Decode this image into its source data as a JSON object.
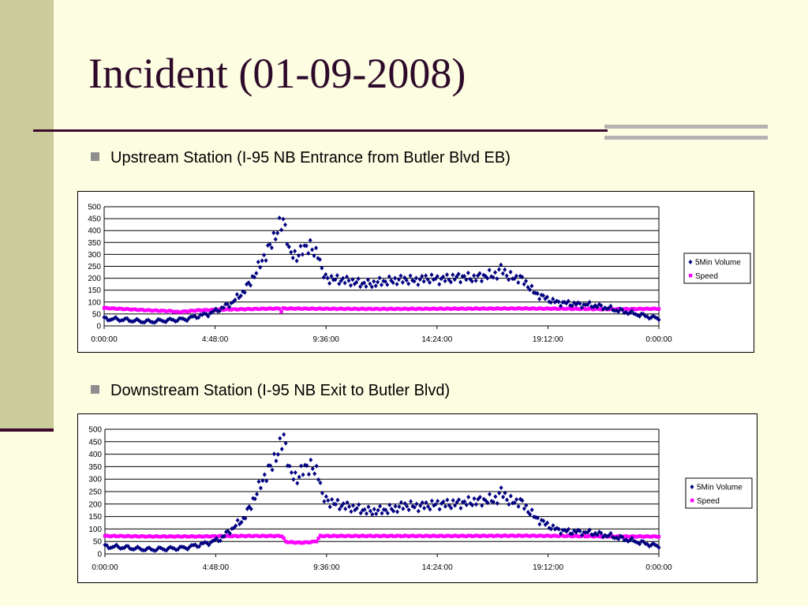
{
  "slide": {
    "title": "Incident (01-09-2008)",
    "bullets": [
      "Upstream Station (I-95 NB Entrance from Butler Blvd EB)",
      "Downstream Station (I-95 NB Exit to Butler Blvd)"
    ]
  },
  "colors": {
    "background": "#fdfde2",
    "sidebar": "#cccc9a",
    "rule": "#3d0a2d",
    "volume": "#000080",
    "speed": "#ff00ff"
  },
  "chart_data": [
    {
      "type": "scatter",
      "title": "",
      "xlabel": "",
      "ylabel": "",
      "ylim": [
        0,
        500
      ],
      "yticks": [
        "500",
        "450",
        "400",
        "350",
        "300",
        "250",
        "200",
        "150",
        "100",
        "50",
        "0"
      ],
      "xticks": [
        "0:00:00",
        "4:48:00",
        "9:36:00",
        "14:24:00",
        "19:12:00",
        "0:00:00"
      ],
      "xlim_hours": [
        0,
        24
      ],
      "grid": true,
      "legend_position": "right",
      "series": [
        {
          "name": "5Min Volume",
          "marker": "diamond",
          "color": "#000080",
          "points": [
            [
              0,
              30
            ],
            [
              0.5,
              28
            ],
            [
              1,
              25
            ],
            [
              1.5,
              20
            ],
            [
              2,
              18
            ],
            [
              2.5,
              22
            ],
            [
              3,
              25
            ],
            [
              3.5,
              28
            ],
            [
              4,
              40
            ],
            [
              4.5,
              50
            ],
            [
              5,
              70
            ],
            [
              5.5,
              95
            ],
            [
              6,
              140
            ],
            [
              6.3,
              180
            ],
            [
              6.6,
              230
            ],
            [
              6.8,
              270
            ],
            [
              7,
              300
            ],
            [
              7.2,
              340
            ],
            [
              7.4,
              380
            ],
            [
              7.6,
              420
            ],
            [
              7.75,
              440
            ],
            [
              7.9,
              390
            ],
            [
              8.0,
              310
            ],
            [
              8.3,
              290
            ],
            [
              8.6,
              320
            ],
            [
              8.9,
              340
            ],
            [
              9.1,
              300
            ],
            [
              9.3,
              310
            ],
            [
              9.4,
              230
            ],
            [
              9.6,
              200
            ],
            [
              10,
              195
            ],
            [
              10.5,
              190
            ],
            [
              11,
              180
            ],
            [
              11.5,
              175
            ],
            [
              12,
              185
            ],
            [
              12.5,
              190
            ],
            [
              13,
              195
            ],
            [
              13.5,
              190
            ],
            [
              14,
              200
            ],
            [
              14.5,
              195
            ],
            [
              15,
              200
            ],
            [
              15.5,
              205
            ],
            [
              16,
              200
            ],
            [
              16.5,
              210
            ],
            [
              17,
              215
            ],
            [
              17.2,
              245
            ],
            [
              17.5,
              205
            ],
            [
              18,
              200
            ],
            [
              18.3,
              175
            ],
            [
              18.6,
              140
            ],
            [
              19,
              120
            ],
            [
              19.5,
              100
            ],
            [
              20,
              95
            ],
            [
              20.5,
              90
            ],
            [
              21,
              88
            ],
            [
              21.5,
              80
            ],
            [
              22,
              70
            ],
            [
              22.5,
              60
            ],
            [
              23,
              50
            ],
            [
              23.5,
              40
            ],
            [
              24,
              30
            ]
          ]
        },
        {
          "name": "Speed",
          "marker": "square",
          "color": "#ff00ff",
          "points": [
            [
              0,
              75
            ],
            [
              1,
              70
            ],
            [
              2,
              65
            ],
            [
              2.9,
              62
            ],
            [
              3.2,
              58
            ],
            [
              4,
              65
            ],
            [
              5,
              68
            ],
            [
              6,
              70
            ],
            [
              7,
              72
            ],
            [
              7.6,
              73
            ],
            [
              7.65,
              55
            ],
            [
              7.7,
              73
            ],
            [
              9,
              72
            ],
            [
              12,
              71
            ],
            [
              15,
              72
            ],
            [
              18,
              73
            ],
            [
              20,
              72
            ],
            [
              22,
              70
            ],
            [
              24,
              72
            ]
          ]
        }
      ]
    },
    {
      "type": "scatter",
      "title": "",
      "xlabel": "",
      "ylabel": "",
      "ylim": [
        0,
        500
      ],
      "yticks": [
        "500",
        "450",
        "400",
        "350",
        "300",
        "250",
        "200",
        "150",
        "100",
        "50",
        "0"
      ],
      "xticks": [
        "0:00:00",
        "4:48:00",
        "9:36:00",
        "14:24:00",
        "19:12:00",
        "0:00:00"
      ],
      "xlim_hours": [
        0,
        24
      ],
      "grid": true,
      "legend_position": "right",
      "series": [
        {
          "name": "5Min Volume",
          "marker": "diamond",
          "color": "#000080",
          "points": [
            [
              0,
              30
            ],
            [
              0.5,
              28
            ],
            [
              1,
              25
            ],
            [
              1.5,
              20
            ],
            [
              2,
              18
            ],
            [
              2.5,
              20
            ],
            [
              3,
              22
            ],
            [
              3.5,
              25
            ],
            [
              4,
              35
            ],
            [
              4.5,
              45
            ],
            [
              5,
              60
            ],
            [
              5.5,
              100
            ],
            [
              6,
              140
            ],
            [
              6.3,
              190
            ],
            [
              6.6,
              250
            ],
            [
              6.8,
              290
            ],
            [
              7,
              320
            ],
            [
              7.2,
              350
            ],
            [
              7.4,
              390
            ],
            [
              7.6,
              430
            ],
            [
              7.75,
              470
            ],
            [
              7.9,
              400
            ],
            [
              8.0,
              330
            ],
            [
              8.3,
              300
            ],
            [
              8.6,
              340
            ],
            [
              8.9,
              355
            ],
            [
              9.1,
              330
            ],
            [
              9.3,
              320
            ],
            [
              9.4,
              230
            ],
            [
              9.6,
              215
            ],
            [
              10,
              200
            ],
            [
              10.5,
              190
            ],
            [
              11,
              180
            ],
            [
              11.5,
              170
            ],
            [
              12,
              175
            ],
            [
              12.5,
              180
            ],
            [
              13,
              195
            ],
            [
              13.5,
              190
            ],
            [
              14,
              195
            ],
            [
              14.5,
              200
            ],
            [
              15,
              200
            ],
            [
              15.5,
              205
            ],
            [
              16,
              210
            ],
            [
              16.5,
              215
            ],
            [
              17,
              220
            ],
            [
              17.2,
              255
            ],
            [
              17.5,
              210
            ],
            [
              18,
              210
            ],
            [
              18.3,
              180
            ],
            [
              18.6,
              150
            ],
            [
              19,
              125
            ],
            [
              19.5,
              100
            ],
            [
              20,
              90
            ],
            [
              20.5,
              88
            ],
            [
              21,
              85
            ],
            [
              21.5,
              78
            ],
            [
              22,
              70
            ],
            [
              22.5,
              60
            ],
            [
              23,
              50
            ],
            [
              23.5,
              40
            ],
            [
              24,
              30
            ]
          ]
        },
        {
          "name": "Speed",
          "marker": "square",
          "color": "#ff00ff",
          "points": [
            [
              0,
              72
            ],
            [
              2,
              70
            ],
            [
              4,
              70
            ],
            [
              6,
              72
            ],
            [
              7.7,
              72
            ],
            [
              7.8,
              50
            ],
            [
              8,
              47
            ],
            [
              8.5,
              45
            ],
            [
              9,
              48
            ],
            [
              9.2,
              52
            ],
            [
              9.3,
              72
            ],
            [
              12,
              72
            ],
            [
              15,
              72
            ],
            [
              18,
              73
            ],
            [
              20,
              72
            ],
            [
              22,
              70
            ],
            [
              24,
              70
            ]
          ]
        }
      ]
    }
  ]
}
